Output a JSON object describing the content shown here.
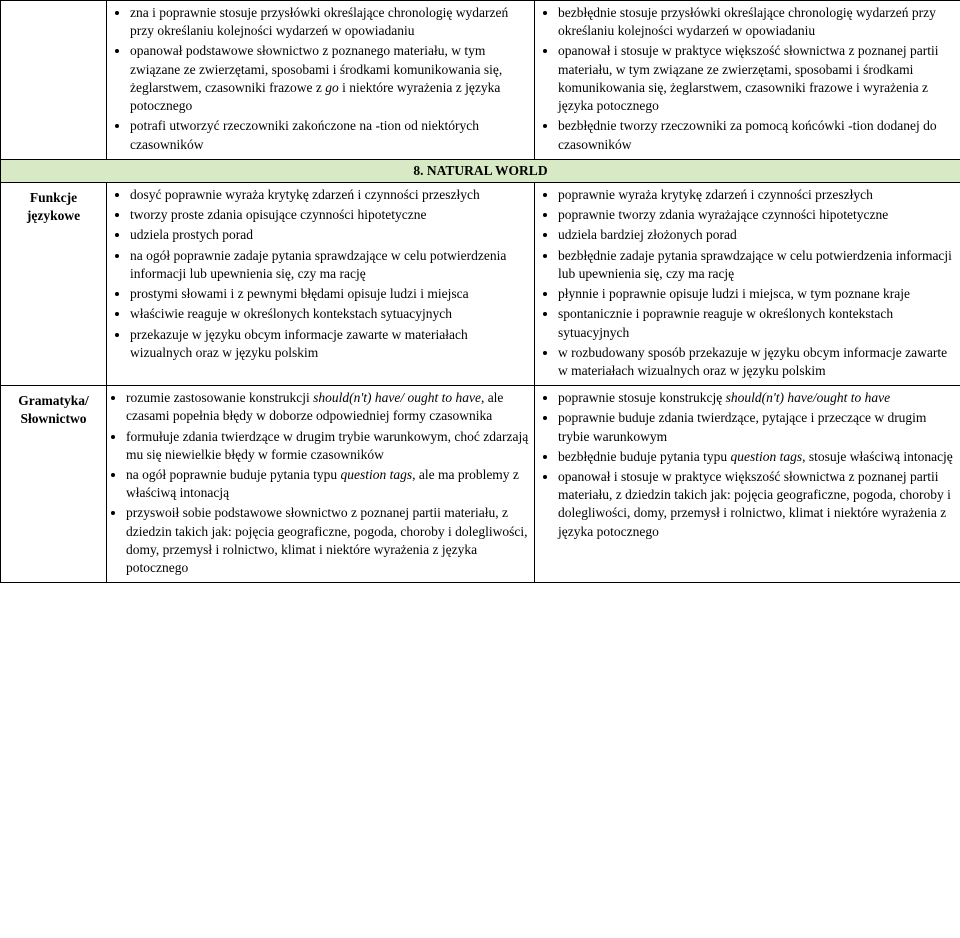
{
  "section_header": "8. NATURAL WORLD",
  "rows": [
    {
      "header": "",
      "left_indent": false,
      "left": [
        "zna i poprawnie stosuje przysłówki określające chronologię wydarzeń przy określaniu kolejności wydarzeń w opowiadaniu",
        "opanował podstawowe słownictwo z poznanego materiału, w tym związane ze zwierzętami, sposobami i środkami komunikowania się, żeglarstwem, czasowniki frazowe z go i niektóre wyrażenia z języka potocznego",
        "potrafi utworzyć rzeczowniki zakończone na -tion od niektórych czasowników"
      ],
      "right": [
        "bezbłędnie stosuje przysłówki określające chronologię wydarzeń przy określaniu kolejności wydarzeń w opowiadaniu",
        "opanował i stosuje w praktyce większość słownictwa z poznanej partii materiału, w tym związane ze zwierzętami, sposobami i środkami komunikowania się, żeglarstwem, czasowniki frazowe i wyrażenia z języka potocznego",
        "bezbłędnie tworzy rzeczowniki za pomocą końcówki -tion dodanej do czasowników"
      ]
    },
    {
      "header": "Funkcje językowe",
      "left_indent": true,
      "left": [
        "dosyć poprawnie wyraża krytykę zdarzeń i czynności przeszłych",
        "tworzy proste zdania opisujące czynności hipotetyczne",
        "udziela prostych porad",
        "na ogół poprawnie zadaje pytania sprawdzające w celu potwierdzenia informacji lub upewnienia się, czy ma rację",
        "prostymi słowami i z pewnymi błędami opisuje ludzi i miejsca",
        "właściwie reaguje w określonych kontekstach sytuacyjnych",
        "przekazuje w języku obcym informacje zawarte w materiałach wizualnych oraz w języku polskim"
      ],
      "right": [
        "poprawnie wyraża krytykę zdarzeń i czynności przeszłych",
        "poprawnie tworzy zdania wyrażające czynności hipotetyczne",
        "udziela bardziej złożonych porad",
        "bezbłędnie zadaje pytania sprawdzające w celu potwierdzenia informacji lub upewnienia się, czy ma rację",
        "płynnie i poprawnie opisuje ludzi i miejsca, w tym poznane kraje",
        "spontanicznie i poprawnie reaguje w określonych kontekstach sytuacyjnych",
        "w rozbudowany sposób przekazuje w języku obcym informacje zawarte w materiałach wizualnych  oraz w języku polskim"
      ]
    },
    {
      "header": "Gramatyka/ Słownictwo",
      "left_indent": false,
      "left": [
        "rozumie zastosowanie konstrukcji should(n't) have/ ought to have, ale czasami popełnia błędy w doborze odpowiedniej formy czasownika",
        "formułuje zdania twierdzące w drugim trybie warunkowym, choć zdarzają mu się niewielkie błędy w formie czasowników",
        "na ogół poprawnie buduje pytania typu question tags, ale ma problemy z właściwą intonacją",
        "przyswoił sobie podstawowe słownictwo z poznanej partii materiału, z dziedzin takich jak: pojęcia geograficzne, pogoda, choroby i dolegliwości, domy, przemysł i rolnictwo, klimat i niektóre wyrażenia z języka potocznego"
      ],
      "right": [
        "poprawnie stosuje konstrukcję should(n't) have/ought to have",
        "poprawnie buduje zdania twierdzące, pytające i przeczące w drugim trybie warunkowym",
        "bezbłędnie buduje pytania typu question tags, stosuje właściwą intonację",
        "opanował i stosuje w praktyce większość słownictwa z poznanej partii materiału, z dziedzin takich jak: pojęcia geograficzne, pogoda, choroby i dolegliwości, domy, przemysł i rolnictwo, klimat i niektóre wyrażenia z języka potocznego"
      ]
    }
  ],
  "colwidths": [
    "106px",
    "428px",
    "426px"
  ]
}
